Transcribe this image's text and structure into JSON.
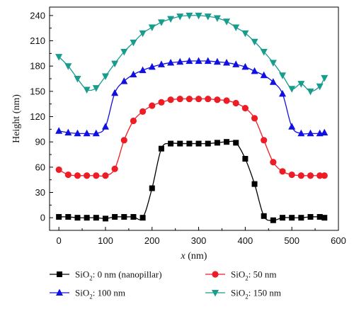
{
  "chart_data": {
    "type": "line",
    "title": "",
    "xlabel": "x (nm)",
    "xlabel_main": "x",
    "xlabel_unit": " (nm)",
    "ylabel": "Height (nm)",
    "xlim": [
      -20,
      600
    ],
    "ylim": [
      -15,
      250
    ],
    "xticks": [
      "0",
      "100",
      "200",
      "300",
      "400",
      "500",
      "600"
    ],
    "yticks": [
      "0",
      "30",
      "60",
      "90",
      "120",
      "150",
      "180",
      "210",
      "240"
    ],
    "grid": false,
    "legend_position": "bottom",
    "series": [
      {
        "name": "SiO2: 0 nm (nanopillar)",
        "label_prefix": "SiO",
        "label_sub": "2",
        "label_suffix": ": 0 nm (nanopillar)",
        "color": "#000000",
        "marker": "square",
        "x": [
          0,
          20,
          40,
          60,
          80,
          100,
          120,
          140,
          160,
          180,
          200,
          220,
          240,
          260,
          280,
          300,
          320,
          340,
          360,
          380,
          400,
          420,
          440,
          460,
          480,
          500,
          520,
          540,
          560,
          570
        ],
        "y": [
          1,
          1,
          0,
          0,
          0,
          -1,
          1,
          1,
          1,
          0,
          35,
          82,
          88,
          88,
          88,
          88,
          88,
          89,
          90,
          89,
          70,
          40,
          2,
          -3,
          0,
          0,
          0,
          1,
          1,
          0
        ]
      },
      {
        "name": "SiO2: 50 nm",
        "label_prefix": "SiO",
        "label_sub": "2",
        "label_suffix": ": 50 nm",
        "color": "#ee1c24",
        "marker": "circle",
        "x": [
          0,
          20,
          40,
          60,
          80,
          100,
          120,
          140,
          160,
          180,
          200,
          220,
          240,
          260,
          280,
          300,
          320,
          340,
          360,
          380,
          400,
          420,
          440,
          460,
          480,
          500,
          520,
          540,
          560,
          570
        ],
        "y": [
          57,
          51,
          50,
          50,
          50,
          50,
          58,
          92,
          115,
          126,
          133,
          137,
          140,
          141,
          141,
          141,
          141,
          140,
          139,
          136,
          130,
          118,
          92,
          66,
          55,
          51,
          50,
          50,
          50,
          50
        ]
      },
      {
        "name": "SiO2: 100 nm",
        "label_prefix": "SiO",
        "label_sub": "2",
        "label_suffix": ": 100 nm",
        "color": "#1010e0",
        "marker": "triangle-up",
        "x": [
          0,
          20,
          40,
          60,
          80,
          100,
          120,
          140,
          160,
          180,
          200,
          220,
          240,
          260,
          280,
          300,
          320,
          340,
          360,
          380,
          400,
          420,
          440,
          460,
          480,
          500,
          520,
          540,
          560,
          570
        ],
        "y": [
          103,
          101,
          100,
          100,
          100,
          108,
          148,
          162,
          170,
          175,
          179,
          182,
          184,
          185,
          186,
          186,
          186,
          185,
          184,
          182,
          179,
          174,
          169,
          161,
          147,
          108,
          100,
          100,
          100,
          101
        ]
      },
      {
        "name": "SiO2: 150 nm",
        "label_prefix": "SiO",
        "label_sub": "2",
        "label_suffix": ": 150 nm",
        "color": "#179c8e",
        "marker": "triangle-down",
        "x": [
          0,
          20,
          40,
          60,
          80,
          100,
          120,
          140,
          160,
          180,
          200,
          220,
          240,
          260,
          280,
          300,
          320,
          340,
          360,
          380,
          400,
          420,
          440,
          460,
          480,
          500,
          520,
          540,
          560,
          570
        ],
        "y": [
          191,
          180,
          165,
          152,
          154,
          168,
          183,
          197,
          208,
          219,
          226,
          232,
          236,
          239,
          240,
          240,
          239,
          237,
          233,
          226,
          219,
          209,
          197,
          184,
          169,
          153,
          159,
          150,
          156,
          166
        ]
      }
    ]
  }
}
